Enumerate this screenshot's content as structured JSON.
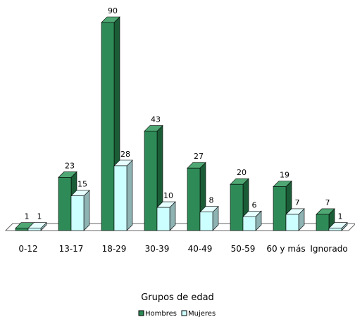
{
  "chart_data": {
    "type": "bar",
    "title": "",
    "xlabel": "Grupos de edad",
    "ylabel": "",
    "ylim": [
      0,
      90
    ],
    "grid": false,
    "legend_position": "bottom",
    "categories": [
      "0-12",
      "13-17",
      "18-29",
      "30-39",
      "40-49",
      "50-59",
      "60 y más",
      "Ignorado"
    ],
    "series": [
      {
        "name": "Hombres",
        "values": [
          1,
          23,
          90,
          43,
          27,
          20,
          19,
          7
        ],
        "color": "#2e8b57"
      },
      {
        "name": "Mujeres",
        "values": [
          1,
          15,
          28,
          10,
          8,
          6,
          7,
          1
        ],
        "color": "#ccffff"
      }
    ]
  }
}
